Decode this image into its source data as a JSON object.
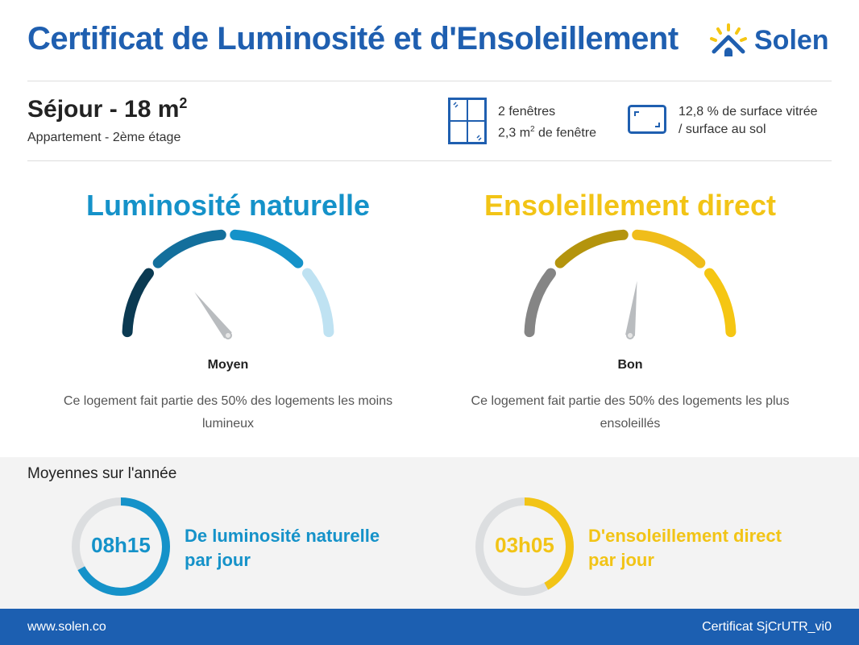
{
  "header": {
    "title": "Certificat de Luminosité et d'Ensoleillement",
    "logo_text": "Solen"
  },
  "room": {
    "name": "Séjour - 18 m",
    "name_sup": "2",
    "subtitle": "Appartement - 2ème étage"
  },
  "stats": {
    "windows_count": "2 fenêtres",
    "window_area_prefix": "2,3 m",
    "window_area_sup": "2",
    "window_area_suffix": " de fenêtre",
    "ratio_line1": "12,8 % de surface vitrée",
    "ratio_line2": "/ surface au sol"
  },
  "luminosity": {
    "title": "Luminosité naturelle",
    "level": "Moyen",
    "needle_level": 0.29,
    "description": "Ce logement fait partie des 50% des logements les moins lumineux",
    "colors": [
      "#0b3a52",
      "#136f9c",
      "#1592c9",
      "#bfe2f2"
    ],
    "accent": "#1592c9"
  },
  "sunshine": {
    "title": "Ensoleillement direct",
    "level": "Bon",
    "needle_level": 0.54,
    "description": "Ce logement fait partie des 50% des logements les plus ensoleillés",
    "colors": [
      "#858585",
      "#b4940d",
      "#f0bd1a",
      "#f5c613"
    ],
    "accent": "#f2c416"
  },
  "averages": {
    "title": "Moyennes sur l'année",
    "luminosity": {
      "value": "08h15",
      "label1": "De luminosité naturelle",
      "label2": "par jour",
      "fill": 0.67
    },
    "sunshine": {
      "value": "03h05",
      "label1": "D'ensoleillement direct",
      "label2": "par jour",
      "fill": 0.42
    }
  },
  "footer": {
    "website": "www.solen.co",
    "certificate_id": "Certificat SjCrUTR_vi0"
  }
}
